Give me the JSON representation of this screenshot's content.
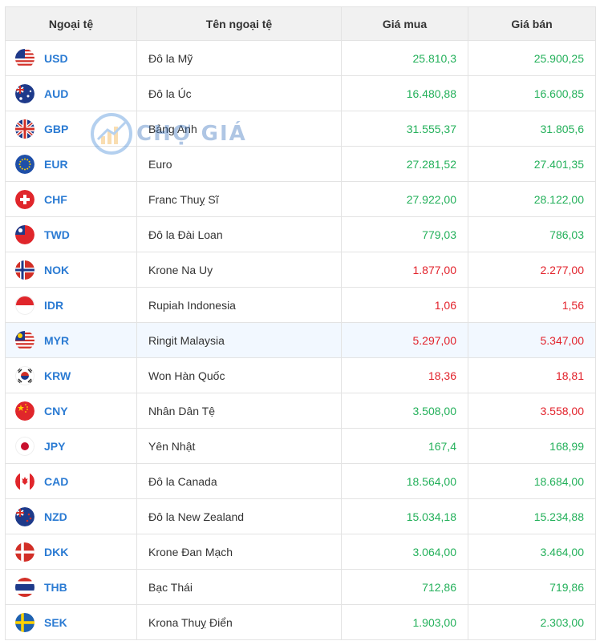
{
  "table": {
    "headers": {
      "code": "Ngoại tệ",
      "name": "Tên ngoại tệ",
      "buy": "Giá mua",
      "sell": "Giá bán"
    }
  },
  "rows": [
    {
      "code": "USD",
      "name": "Đô la Mỹ",
      "buy": "25.810,3",
      "sell": "25.900,25",
      "buy_trend": "up",
      "sell_trend": "up",
      "flag": "us-flag-icon"
    },
    {
      "code": "AUD",
      "name": "Đô la Úc",
      "buy": "16.480,88",
      "sell": "16.600,85",
      "buy_trend": "up",
      "sell_trend": "up",
      "flag": "au-flag-icon"
    },
    {
      "code": "GBP",
      "name": "Bảng Anh",
      "buy": "31.555,37",
      "sell": "31.805,6",
      "buy_trend": "up",
      "sell_trend": "up",
      "flag": "gb-flag-icon"
    },
    {
      "code": "EUR",
      "name": "Euro",
      "buy": "27.281,52",
      "sell": "27.401,35",
      "buy_trend": "up",
      "sell_trend": "up",
      "flag": "eu-flag-icon"
    },
    {
      "code": "CHF",
      "name": "Franc Thuỵ Sĩ",
      "buy": "27.922,00",
      "sell": "28.122,00",
      "buy_trend": "up",
      "sell_trend": "up",
      "flag": "ch-flag-icon"
    },
    {
      "code": "TWD",
      "name": "Đô la Đài Loan",
      "buy": "779,03",
      "sell": "786,03",
      "buy_trend": "up",
      "sell_trend": "up",
      "flag": "tw-flag-icon"
    },
    {
      "code": "NOK",
      "name": "Krone Na Uy",
      "buy": "1.877,00",
      "sell": "2.277,00",
      "buy_trend": "down",
      "sell_trend": "down",
      "flag": "no-flag-icon"
    },
    {
      "code": "IDR",
      "name": "Rupiah Indonesia",
      "buy": "1,06",
      "sell": "1,56",
      "buy_trend": "down",
      "sell_trend": "down",
      "flag": "id-flag-icon"
    },
    {
      "code": "MYR",
      "name": "Ringit Malaysia",
      "buy": "5.297,00",
      "sell": "5.347,00",
      "buy_trend": "down",
      "sell_trend": "down",
      "flag": "my-flag-icon"
    },
    {
      "code": "KRW",
      "name": "Won Hàn Quốc",
      "buy": "18,36",
      "sell": "18,81",
      "buy_trend": "down",
      "sell_trend": "down",
      "flag": "kr-flag-icon"
    },
    {
      "code": "CNY",
      "name": "Nhân Dân Tệ",
      "buy": "3.508,00",
      "sell": "3.558,00",
      "buy_trend": "up",
      "sell_trend": "down",
      "flag": "cn-flag-icon"
    },
    {
      "code": "JPY",
      "name": "Yên Nhật",
      "buy": "167,4",
      "sell": "168,99",
      "buy_trend": "up",
      "sell_trend": "up",
      "flag": "jp-flag-icon"
    },
    {
      "code": "CAD",
      "name": "Đô la Canada",
      "buy": "18.564,00",
      "sell": "18.684,00",
      "buy_trend": "up",
      "sell_trend": "up",
      "flag": "ca-flag-icon"
    },
    {
      "code": "NZD",
      "name": "Đô la New Zealand",
      "buy": "15.034,18",
      "sell": "15.234,88",
      "buy_trend": "up",
      "sell_trend": "up",
      "flag": "nz-flag-icon"
    },
    {
      "code": "DKK",
      "name": "Krone Đan Mạch",
      "buy": "3.064,00",
      "sell": "3.464,00",
      "buy_trend": "up",
      "sell_trend": "up",
      "flag": "dk-flag-icon"
    },
    {
      "code": "THB",
      "name": "Bạc Thái",
      "buy": "712,86",
      "sell": "719,86",
      "buy_trend": "up",
      "sell_trend": "up",
      "flag": "th-flag-icon"
    },
    {
      "code": "SEK",
      "name": "Krona Thuỵ Điển",
      "buy": "1.903,00",
      "sell": "2.303,00",
      "buy_trend": "up",
      "sell_trend": "up",
      "flag": "se-flag-icon"
    }
  ],
  "highlighted_row": "MYR",
  "watermark": {
    "text": "CHỢ GIÁ",
    "icon": "chart-logo-icon"
  },
  "colors": {
    "up": "#23b05a",
    "down": "#e2222b",
    "code": "#2b7bd3",
    "header_bg": "#f1f1f1",
    "highlight_bg": "#f2f8ff"
  }
}
